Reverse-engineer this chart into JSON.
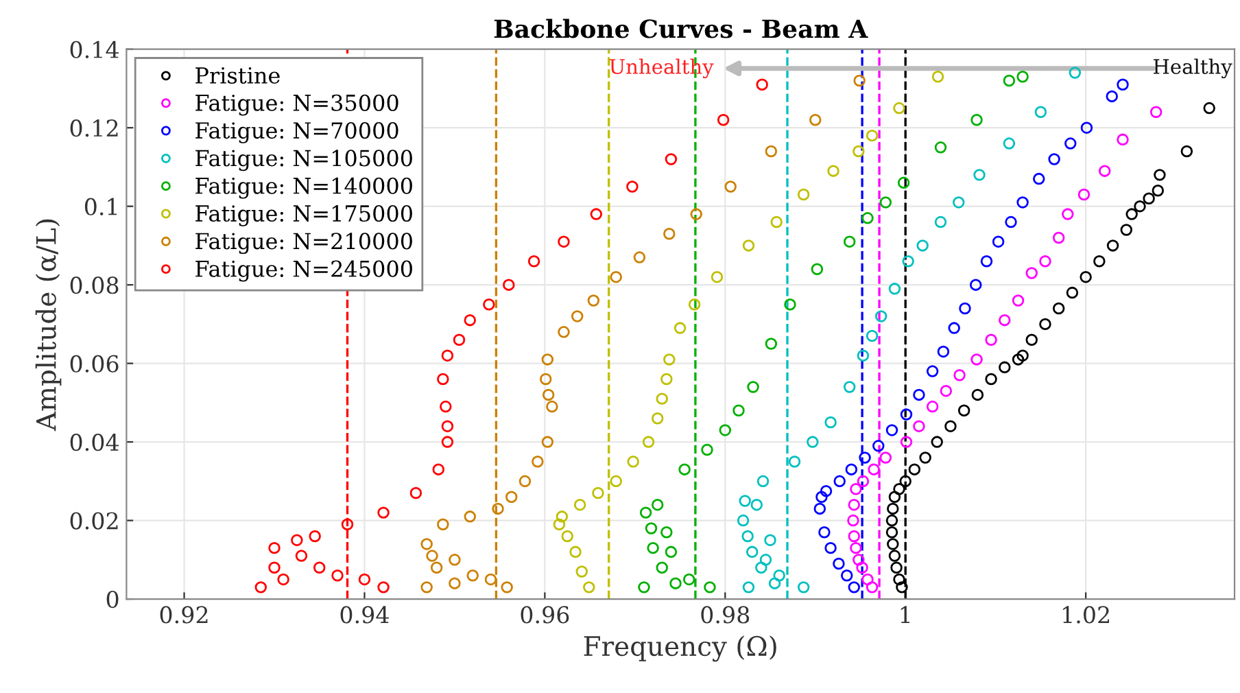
{
  "chart_data": {
    "type": "scatter",
    "title": "Backbone Curves - Beam A",
    "xlabel": "Frequency (Ω)",
    "ylabel": "Amplitude (α/L)",
    "xlim": [
      0.9136,
      1.0365
    ],
    "ylim": [
      0,
      0.14
    ],
    "xticks": [
      0.92,
      0.94,
      0.96,
      0.98,
      1,
      1.02
    ],
    "yticks": [
      0,
      0.02,
      0.04,
      0.06,
      0.08,
      0.1,
      0.12,
      0.14
    ],
    "grid": true,
    "legend": "top left",
    "marker": "circle",
    "annotations": [
      "Unhealthy",
      "Healthy"
    ],
    "series": [
      {
        "name": "Pristine",
        "color": "#000000",
        "x": [
          0.9996,
          0.9993,
          0.999,
          0.9988,
          0.9986,
          0.9985,
          0.9985,
          0.9986,
          0.9988,
          0.9993,
          1.0,
          1.001,
          1.0022,
          1.0035,
          1.005,
          1.0065,
          1.008,
          1.0095,
          1.011,
          1.0125,
          1.013,
          1.014,
          1.0155,
          1.017,
          1.0185,
          1.02,
          1.0215,
          1.023,
          1.0245,
          1.0251,
          1.026,
          1.027,
          1.028,
          1.0282,
          1.0312,
          1.0337
        ],
        "values": [
          0.003,
          0.005,
          0.008,
          0.011,
          0.014,
          0.017,
          0.02,
          0.023,
          0.026,
          0.028,
          0.03,
          0.033,
          0.036,
          0.04,
          0.044,
          0.048,
          0.052,
          0.056,
          0.059,
          0.061,
          0.062,
          0.066,
          0.07,
          0.074,
          0.078,
          0.082,
          0.086,
          0.09,
          0.094,
          0.098,
          0.1,
          0.102,
          0.104,
          0.108,
          0.114,
          0.125
        ]
      },
      {
        "name": "Fatigue: N=35000",
        "color": "#ff00ff",
        "x": [
          0.9963,
          0.9958,
          0.9952,
          0.9948,
          0.9945,
          0.9943,
          0.9942,
          0.9943,
          0.9945,
          0.9953,
          0.9965,
          0.9978,
          1.0001,
          1.0015,
          1.003,
          1.0045,
          1.006,
          1.0079,
          1.0095,
          1.011,
          1.0125,
          1.014,
          1.0155,
          1.017,
          1.018,
          1.0198,
          1.0221,
          1.0241,
          1.0278
        ],
        "values": [
          0.003,
          0.005,
          0.008,
          0.01,
          0.013,
          0.016,
          0.02,
          0.024,
          0.028,
          0.03,
          0.033,
          0.036,
          0.04,
          0.044,
          0.049,
          0.053,
          0.057,
          0.061,
          0.066,
          0.071,
          0.076,
          0.083,
          0.086,
          0.092,
          0.098,
          0.103,
          0.109,
          0.117,
          0.124
        ]
      },
      {
        "name": "Fatigue: N=70000",
        "color": "#0000ff",
        "x": [
          0.9943,
          0.9935,
          0.9926,
          0.9917,
          0.991,
          0.9905,
          0.9907,
          0.9912,
          0.9927,
          0.994,
          0.9955,
          0.997,
          0.9985,
          1.0001,
          1.0015,
          1.003,
          1.0042,
          1.0054,
          1.0066,
          1.0078,
          1.009,
          1.0103,
          1.0117,
          1.013,
          1.0148,
          1.0165,
          1.0183,
          1.0201,
          1.0229,
          1.0241
        ],
        "values": [
          0.003,
          0.006,
          0.009,
          0.013,
          0.017,
          0.023,
          0.026,
          0.0275,
          0.03,
          0.033,
          0.036,
          0.039,
          0.043,
          0.047,
          0.052,
          0.058,
          0.063,
          0.069,
          0.074,
          0.08,
          0.086,
          0.091,
          0.096,
          0.101,
          0.107,
          0.112,
          0.116,
          0.12,
          0.128,
          0.131
        ]
      },
      {
        "name": "Fatigue: N=105000",
        "color": "#00bfbf",
        "x": [
          0.9826,
          0.9887,
          0.9855,
          0.984,
          0.986,
          0.983,
          0.9845,
          0.9825,
          0.985,
          0.982,
          0.9835,
          0.9822,
          0.9842,
          0.9877,
          0.9897,
          0.9917,
          0.9938,
          0.9953,
          0.9963,
          0.9973,
          0.9988,
          1.0003,
          1.0019,
          1.0039,
          1.0059,
          1.0082,
          1.0115,
          1.015,
          1.0188
        ],
        "values": [
          0.003,
          0.003,
          0.004,
          0.008,
          0.006,
          0.012,
          0.01,
          0.016,
          0.015,
          0.02,
          0.024,
          0.025,
          0.03,
          0.035,
          0.04,
          0.045,
          0.054,
          0.062,
          0.067,
          0.072,
          0.079,
          0.086,
          0.09,
          0.096,
          0.101,
          0.108,
          0.116,
          0.124,
          0.134
        ]
      },
      {
        "name": "Fatigue: N=140000",
        "color": "#00b000",
        "x": [
          0.971,
          0.9783,
          0.9745,
          0.973,
          0.976,
          0.972,
          0.974,
          0.9718,
          0.9735,
          0.9712,
          0.9725,
          0.9755,
          0.978,
          0.98,
          0.9815,
          0.9831,
          0.9851,
          0.9872,
          0.9902,
          0.9938,
          0.9958,
          0.9978,
          0.9998,
          1.0039,
          1.0079,
          1.0115,
          1.013
        ],
        "values": [
          0.003,
          0.003,
          0.004,
          0.008,
          0.005,
          0.013,
          0.012,
          0.018,
          0.017,
          0.022,
          0.024,
          0.033,
          0.038,
          0.043,
          0.048,
          0.054,
          0.065,
          0.075,
          0.084,
          0.091,
          0.097,
          0.101,
          0.106,
          0.115,
          0.122,
          0.132,
          0.133
        ]
      },
      {
        "name": "Fatigue: N=175000",
        "color": "#bfbf00",
        "x": [
          0.9649,
          0.9641,
          0.9634,
          0.9625,
          0.9616,
          0.9619,
          0.9639,
          0.9659,
          0.9679,
          0.9698,
          0.9715,
          0.9725,
          0.973,
          0.9735,
          0.9738,
          0.975,
          0.9766,
          0.9791,
          0.9826,
          0.9857,
          0.9887,
          0.992,
          0.9948,
          0.9963,
          0.9993,
          1.0036
        ],
        "values": [
          0.003,
          0.007,
          0.012,
          0.016,
          0.019,
          0.021,
          0.024,
          0.027,
          0.03,
          0.035,
          0.04,
          0.046,
          0.051,
          0.056,
          0.061,
          0.069,
          0.075,
          0.082,
          0.09,
          0.096,
          0.103,
          0.109,
          0.114,
          0.118,
          0.125,
          0.133
        ]
      },
      {
        "name": "Fatigue: N=210000",
        "color": "#cc8000",
        "x": [
          0.9469,
          0.9558,
          0.95,
          0.952,
          0.948,
          0.954,
          0.9475,
          0.95,
          0.9469,
          0.9487,
          0.9517,
          0.9548,
          0.9563,
          0.9578,
          0.9592,
          0.9603,
          0.9608,
          0.9604,
          0.9601,
          0.9603,
          0.9621,
          0.9636,
          0.9654,
          0.9679,
          0.9705,
          0.9738,
          0.9768,
          0.9806,
          0.9851,
          0.99,
          0.9949
        ],
        "values": [
          0.003,
          0.003,
          0.004,
          0.006,
          0.008,
          0.005,
          0.011,
          0.01,
          0.014,
          0.019,
          0.021,
          0.023,
          0.026,
          0.03,
          0.035,
          0.04,
          0.049,
          0.052,
          0.056,
          0.061,
          0.068,
          0.072,
          0.076,
          0.082,
          0.087,
          0.093,
          0.098,
          0.105,
          0.114,
          0.122,
          0.132
        ]
      },
      {
        "name": "Fatigue: N=245000",
        "color": "#ff0000",
        "x": [
          0.9285,
          0.9421,
          0.931,
          0.935,
          0.93,
          0.94,
          0.933,
          0.937,
          0.93,
          0.9325,
          0.9345,
          0.9381,
          0.9421,
          0.9457,
          0.9482,
          0.9492,
          0.9492,
          0.949,
          0.9487,
          0.9492,
          0.9505,
          0.9517,
          0.9538,
          0.956,
          0.9588,
          0.9621,
          0.9657,
          0.9697,
          0.974,
          0.9798,
          0.9841
        ],
        "values": [
          0.003,
          0.003,
          0.005,
          0.008,
          0.008,
          0.005,
          0.011,
          0.006,
          0.013,
          0.015,
          0.016,
          0.019,
          0.022,
          0.027,
          0.033,
          0.04,
          0.044,
          0.049,
          0.056,
          0.062,
          0.066,
          0.071,
          0.075,
          0.08,
          0.086,
          0.091,
          0.098,
          0.105,
          0.112,
          0.122,
          0.131
        ]
      }
    ],
    "ref_lines": [
      {
        "axis": "x",
        "value": 0.9381,
        "color": "#ff0000",
        "line_style": "dashed"
      },
      {
        "axis": "x",
        "value": 0.9546,
        "color": "#cc8000",
        "line_style": "dashed"
      },
      {
        "axis": "x",
        "value": 0.9671,
        "color": "#bfbf00",
        "line_style": "dashed"
      },
      {
        "axis": "x",
        "value": 0.9767,
        "color": "#00b000",
        "line_style": "dashed"
      },
      {
        "axis": "x",
        "value": 0.9869,
        "color": "#00bfbf",
        "line_style": "dashed"
      },
      {
        "axis": "x",
        "value": 0.9952,
        "color": "#0000ff",
        "line_style": "dashed"
      },
      {
        "axis": "x",
        "value": 0.9971,
        "color": "#ff00ff",
        "line_style": "dashed"
      },
      {
        "axis": "x",
        "value": 1.0,
        "color": "#000000",
        "line_style": "dashed"
      }
    ]
  }
}
